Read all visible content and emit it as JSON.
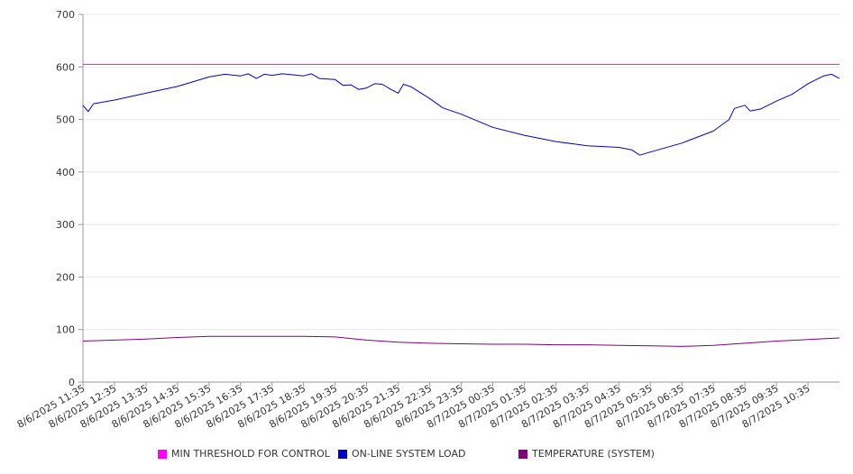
{
  "chart_data": {
    "type": "line",
    "ylim": [
      0,
      700
    ],
    "yticks": [
      0,
      100,
      200,
      300,
      400,
      500,
      600,
      700
    ],
    "x_tick_labels": [
      "8/6/2025 11:35",
      "8/6/2025 12:35",
      "8/6/2025 13:35",
      "8/6/2025 14:35",
      "8/6/2025 15:35",
      "8/6/2025 16:35",
      "8/6/2025 17:35",
      "8/6/2025 18:35",
      "8/6/2025 19:35",
      "8/6/2025 20:35",
      "8/6/2025 21:35",
      "8/6/2025 22:35",
      "8/6/2025 23:35",
      "8/7/2025 00:35",
      "8/7/2025 01:35",
      "8/7/2025 02:35",
      "8/7/2025 03:35",
      "8/7/2025 04:35",
      "8/7/2025 05:35",
      "8/7/2025 06:35",
      "8/7/2025 07:35",
      "8/7/2025 08:35",
      "8/7/2025 09:35",
      "8/7/2025 10:35"
    ],
    "grid": true,
    "legend_position": "bottom",
    "series": [
      {
        "name": "MIN THRESHOLD FOR CONTROL",
        "color": "#ff00ff",
        "points": [
          [
            "8/6/2025 11:35",
            605
          ],
          [
            "8/7/2025 11:35",
            605
          ]
        ]
      },
      {
        "name": "ON-LINE SYSTEM LOAD",
        "color": "#0000cc",
        "points": [
          [
            "8/6/2025 11:35",
            527
          ],
          [
            "8/6/2025 11:45",
            515
          ],
          [
            "8/6/2025 11:55",
            530
          ],
          [
            "8/6/2025 12:35",
            537
          ],
          [
            "8/6/2025 13:35",
            550
          ],
          [
            "8/6/2025 14:35",
            563
          ],
          [
            "8/6/2025 15:35",
            581
          ],
          [
            "8/6/2025 16:05",
            586
          ],
          [
            "8/6/2025 16:35",
            583
          ],
          [
            "8/6/2025 16:50",
            587
          ],
          [
            "8/6/2025 17:05",
            578
          ],
          [
            "8/6/2025 17:20",
            586
          ],
          [
            "8/6/2025 17:35",
            584
          ],
          [
            "8/6/2025 17:55",
            587
          ],
          [
            "8/6/2025 18:35",
            583
          ],
          [
            "8/6/2025 18:50",
            587
          ],
          [
            "8/6/2025 19:05",
            578
          ],
          [
            "8/6/2025 19:35",
            576
          ],
          [
            "8/6/2025 19:50",
            565
          ],
          [
            "8/6/2025 20:05",
            566
          ],
          [
            "8/6/2025 20:20",
            557
          ],
          [
            "8/6/2025 20:35",
            560
          ],
          [
            "8/6/2025 20:50",
            568
          ],
          [
            "8/6/2025 21:05",
            567
          ],
          [
            "8/6/2025 21:20",
            558
          ],
          [
            "8/6/2025 21:35",
            550
          ],
          [
            "8/6/2025 21:45",
            567
          ],
          [
            "8/6/2025 22:00",
            562
          ],
          [
            "8/6/2025 22:35",
            540
          ],
          [
            "8/6/2025 23:00",
            522
          ],
          [
            "8/6/2025 23:35",
            510
          ],
          [
            "8/7/2025 00:35",
            485
          ],
          [
            "8/7/2025 01:35",
            470
          ],
          [
            "8/7/2025 02:35",
            458
          ],
          [
            "8/7/2025 03:35",
            450
          ],
          [
            "8/7/2025 04:35",
            447
          ],
          [
            "8/7/2025 05:00",
            442
          ],
          [
            "8/7/2025 05:15",
            432
          ],
          [
            "8/7/2025 05:35",
            438
          ],
          [
            "8/7/2025 06:35",
            455
          ],
          [
            "8/7/2025 07:35",
            478
          ],
          [
            "8/7/2025 08:05",
            500
          ],
          [
            "8/7/2025 08:15",
            521
          ],
          [
            "8/7/2025 08:35",
            527
          ],
          [
            "8/7/2025 08:45",
            516
          ],
          [
            "8/7/2025 09:05",
            520
          ],
          [
            "8/7/2025 09:35",
            535
          ],
          [
            "8/7/2025 10:05",
            548
          ],
          [
            "8/7/2025 10:35",
            568
          ],
          [
            "8/7/2025 11:05",
            583
          ],
          [
            "8/7/2025 11:20",
            586
          ],
          [
            "8/7/2025 11:35",
            578
          ]
        ]
      },
      {
        "name": "TEMPERATURE (SYSTEM)",
        "color": "#800080",
        "points": [
          [
            "8/6/2025 11:35",
            78
          ],
          [
            "8/6/2025 12:35",
            80
          ],
          [
            "8/6/2025 13:35",
            82
          ],
          [
            "8/6/2025 14:35",
            85
          ],
          [
            "8/6/2025 15:35",
            87
          ],
          [
            "8/6/2025 16:35",
            87
          ],
          [
            "8/6/2025 17:35",
            87
          ],
          [
            "8/6/2025 18:35",
            87
          ],
          [
            "8/6/2025 19:35",
            86
          ],
          [
            "8/6/2025 20:35",
            80
          ],
          [
            "8/6/2025 21:35",
            76
          ],
          [
            "8/6/2025 22:35",
            74
          ],
          [
            "8/6/2025 23:35",
            73
          ],
          [
            "8/7/2025 00:35",
            72
          ],
          [
            "8/7/2025 01:35",
            72
          ],
          [
            "8/7/2025 02:35",
            71
          ],
          [
            "8/7/2025 03:35",
            71
          ],
          [
            "8/7/2025 04:35",
            70
          ],
          [
            "8/7/2025 05:35",
            69
          ],
          [
            "8/7/2025 06:35",
            68
          ],
          [
            "8/7/2025 07:35",
            70
          ],
          [
            "8/7/2025 08:35",
            74
          ],
          [
            "8/7/2025 09:35",
            78
          ],
          [
            "8/7/2025 10:35",
            81
          ],
          [
            "8/7/2025 11:35",
            84
          ]
        ]
      }
    ]
  }
}
